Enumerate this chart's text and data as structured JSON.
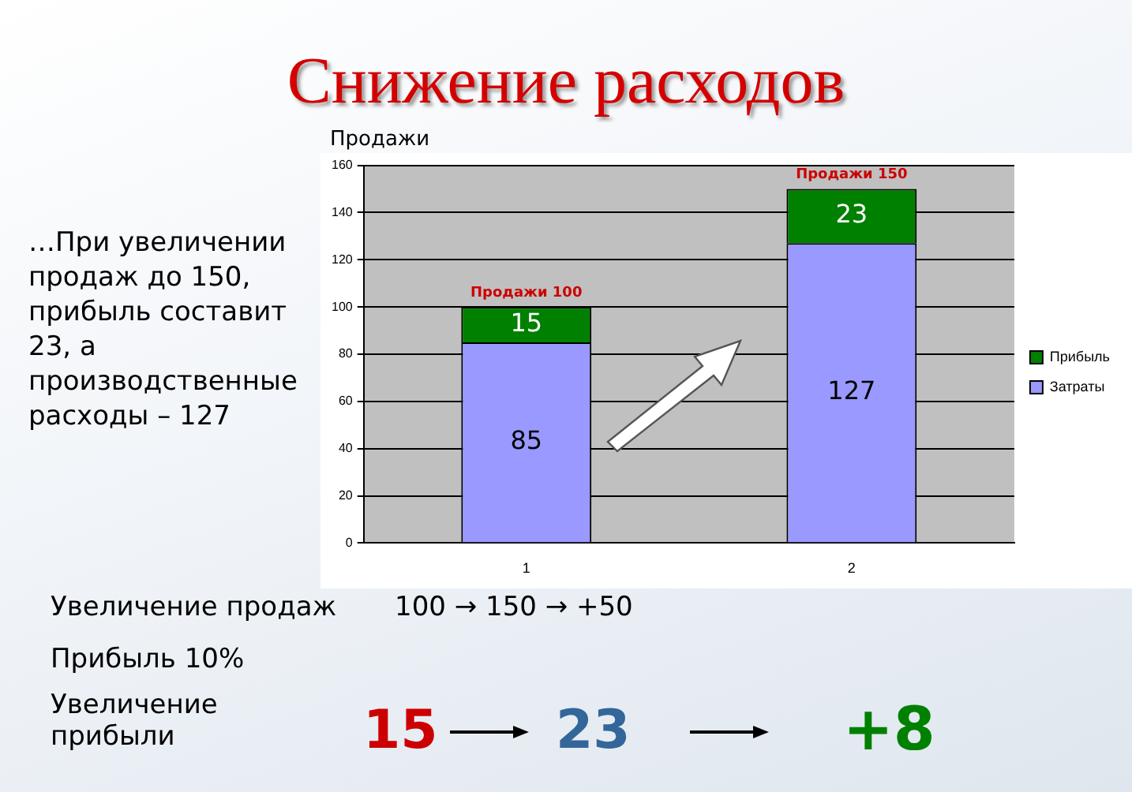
{
  "chart_data": {
    "type": "bar",
    "title": "Снижение расходов",
    "ylabel": "Продажи",
    "categories": [
      "1",
      "2"
    ],
    "stacked": true,
    "series": [
      {
        "name": "Затраты",
        "color": "#9999ff",
        "values": [
          85,
          127
        ]
      },
      {
        "name": "Прибыль",
        "color": "#008000",
        "values": [
          15,
          23
        ]
      }
    ],
    "ylim": [
      0,
      160
    ],
    "yticks": [
      0,
      20,
      40,
      60,
      80,
      100,
      120,
      140,
      160
    ],
    "grid": "y",
    "legend": "right",
    "data_labels": true,
    "totals": [
      "Продажи 100",
      "Продажи 150"
    ],
    "annotations": [
      "…При увеличении продаж до 150, прибыль составит 23, а производственные расходы – 127",
      "Увеличение продаж",
      "100 → 150 → +50",
      "Прибыль 10%",
      "Увеличение прибыли",
      "15",
      "23",
      "+8"
    ]
  }
}
